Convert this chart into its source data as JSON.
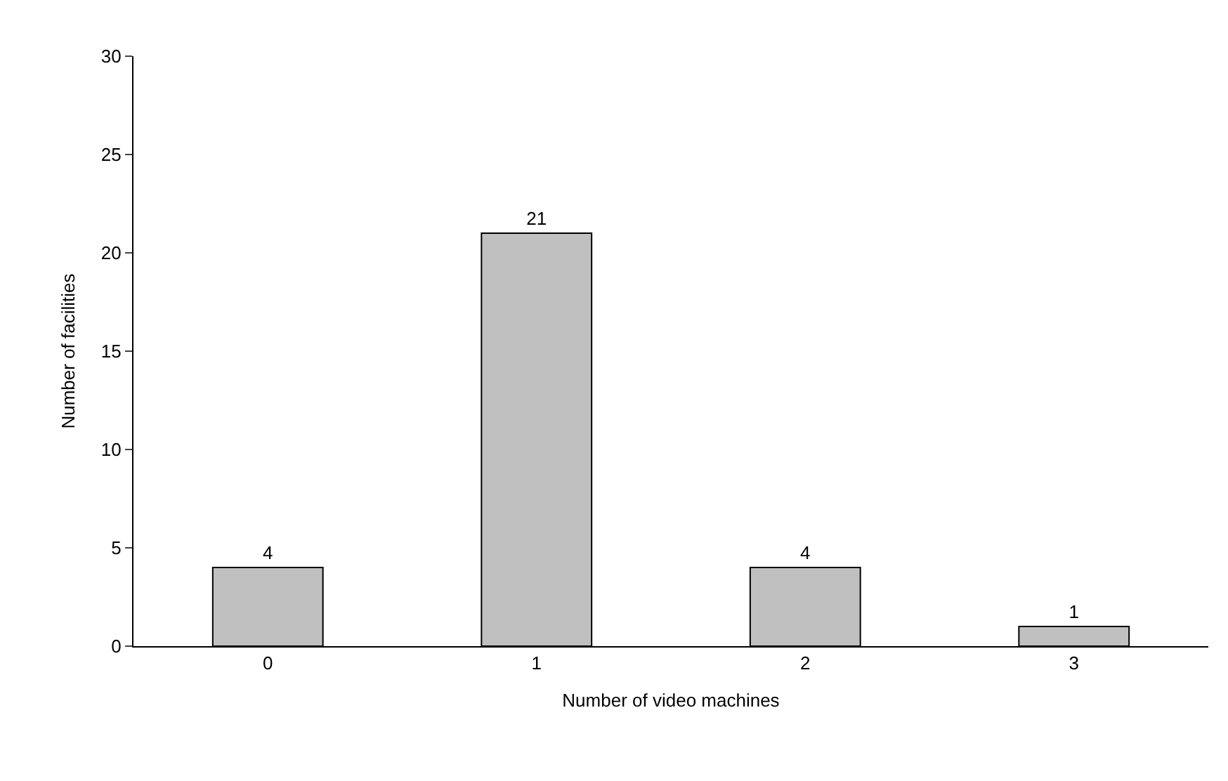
{
  "chart_data": {
    "type": "bar",
    "categories": [
      "0",
      "1",
      "2",
      "3"
    ],
    "values": [
      4,
      21,
      4,
      1
    ],
    "color": "#c0c0c0",
    "xlabel": "Number of video machines",
    "ylabel": "Number of facilities",
    "ylim": [
      0,
      30
    ],
    "yticks": [
      0,
      5,
      10,
      15,
      20,
      25,
      30
    ],
    "data_labels": true,
    "legend": false
  }
}
